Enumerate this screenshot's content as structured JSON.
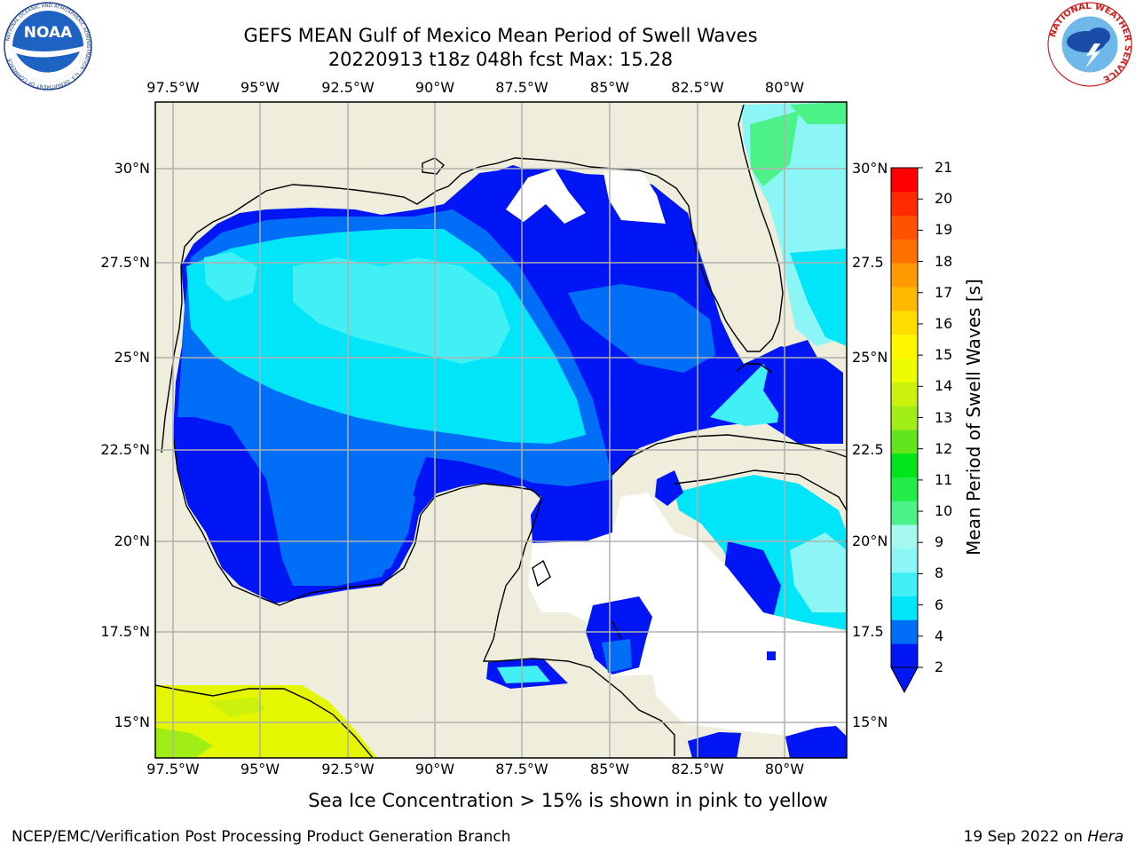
{
  "header": {
    "title_line1": "GEFS MEAN Gulf of Mexico Mean Period of Swell Waves",
    "title_line2": "20220913 t18z 048h fcst   Max: 15.28"
  },
  "logos": {
    "noaa_text": "NOAA",
    "noaa_ring_text": "NATIONAL OCEANIC AND ATMOSPHERIC ADMINISTRATION · U.S. DEPARTMENT OF COMMERCE",
    "nws_ring_text": "NATIONAL WEATHER SERVICE"
  },
  "map": {
    "lon_ticks": [
      "97.5°W",
      "95°W",
      "92.5°W",
      "90°W",
      "87.5°W",
      "85°W",
      "82.5°W",
      "80°W"
    ],
    "lat_ticks_left": [
      "30°N",
      "27.5°N",
      "25°N",
      "22.5°N",
      "20°N",
      "17.5°N",
      "15°N"
    ],
    "lat_ticks_right": [
      "30°N",
      "27.5",
      "25°N",
      "22.5",
      "20°N",
      "17.5",
      "15°N"
    ],
    "extent": {
      "lon_min": -98.0,
      "lon_max": -78.3,
      "lat_min": 14.0,
      "lat_max": 31.7
    },
    "colors": {
      "land": "#efeedd",
      "nodata": "#ffffff",
      "grid": "#b0b0b0"
    }
  },
  "colorbar": {
    "label": "Mean Period of Swell Waves [s]",
    "ticks": [
      "21",
      "20",
      "19",
      "18",
      "17",
      "16",
      "15",
      "14",
      "13",
      "12",
      "11",
      "10",
      "9",
      "8",
      "6",
      "4",
      "2"
    ],
    "colors": [
      "#0016f5",
      "#006ef7",
      "#00e5f7",
      "#40f0f5",
      "#8bf6f5",
      "#a5f9f0",
      "#4cf288",
      "#22ec47",
      "#00e51a",
      "#62e51d",
      "#a1ee17",
      "#cbf10c",
      "#eefc00",
      "#fff600",
      "#ffdd00",
      "#ffb800",
      "#ff9a00",
      "#ff7200",
      "#ff5200",
      "#ff2a00",
      "#ff0000"
    ]
  },
  "footer": {
    "sea_ice_note": "Sea Ice Concentration > 15% is shown in pink to yellow",
    "credit_left": "NCEP/EMC/Verification Post Processing Product Generation Branch",
    "credit_date": "19 Sep 2022 on",
    "credit_host": "Hera"
  }
}
